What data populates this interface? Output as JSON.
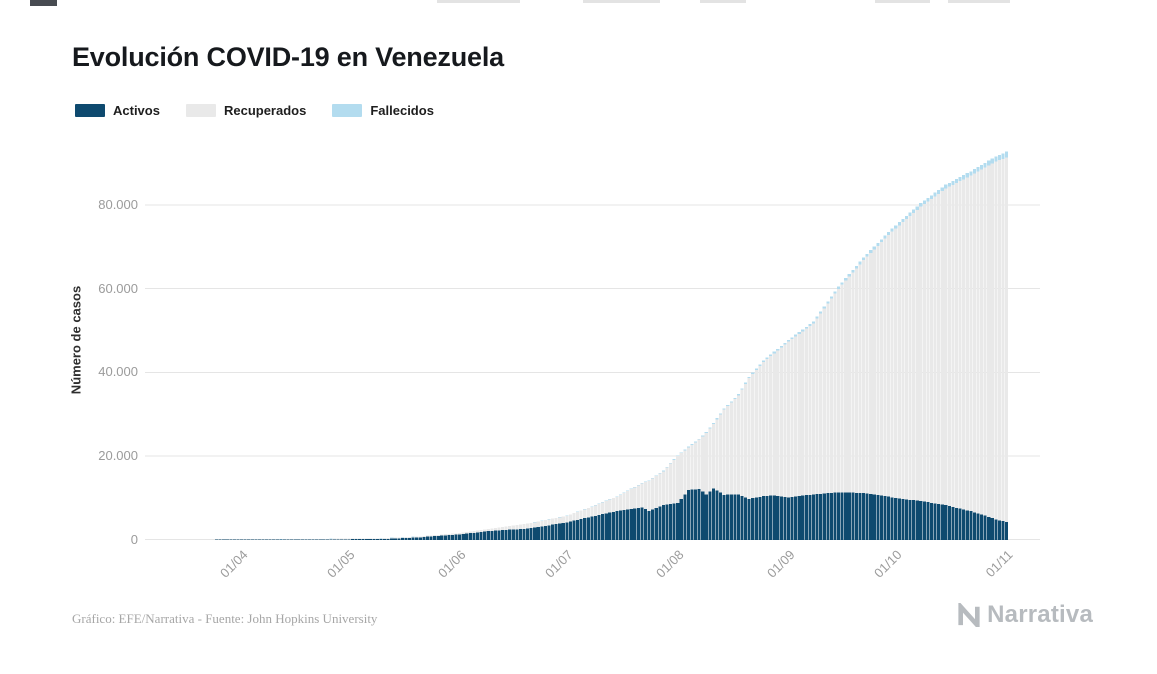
{
  "header": {
    "title": "Evolución COVID-19 en Venezuela"
  },
  "legend": {
    "items": [
      {
        "id": "activos",
        "label": "Activos",
        "color": "#0e4a6f"
      },
      {
        "id": "recuperados",
        "label": "Recuperados",
        "color": "#e9e9e9"
      },
      {
        "id": "fallecidos",
        "label": "Fallecidos",
        "color": "#b3dcef"
      }
    ]
  },
  "theme": {
    "grid_color": "#e5e5e5",
    "axis_text_color": "#9b9b9b",
    "title_color": "#16191d",
    "credit_color": "#a6a6a6",
    "brand_color": "#b7bbbf"
  },
  "footer": {
    "credit": "Gráfico: EFE/Narrativa - Fuente: John Hopkins University",
    "brand_name": "Narrativa"
  },
  "chart_data": {
    "type": "bar",
    "stacked": true,
    "title": "Evolución COVID-19 en Venezuela",
    "xlabel": "",
    "ylabel": "Número de casos",
    "grid": true,
    "legend_position": "top-left",
    "ylim": [
      0,
      95500
    ],
    "total_days": 222,
    "series_order": [
      "activos",
      "recuperados",
      "fallecidos"
    ],
    "colors": {
      "activos": "#0e4a6f",
      "recuperados": "#e9e9e9",
      "fallecidos": "#b3dcef"
    },
    "yticks": [
      {
        "value": 0,
        "label": "0"
      },
      {
        "value": 20000,
        "label": "20.000"
      },
      {
        "value": 40000,
        "label": "40.000"
      },
      {
        "value": 60000,
        "label": "60.000"
      },
      {
        "value": 80000,
        "label": "80.000"
      }
    ],
    "xticks": [
      {
        "day": 7,
        "label": "01/04"
      },
      {
        "day": 37,
        "label": "01/05"
      },
      {
        "day": 68,
        "label": "01/06"
      },
      {
        "day": 98,
        "label": "01/07"
      },
      {
        "day": 129,
        "label": "01/08"
      },
      {
        "day": 160,
        "label": "01/09"
      },
      {
        "day": 190,
        "label": "01/10"
      },
      {
        "day": 221,
        "label": "01/11"
      }
    ],
    "points": [
      {
        "day": 0,
        "date": "25/03",
        "activos": 75,
        "recuperados": 14,
        "fallecidos": 2
      },
      {
        "day": 7,
        "date": "01/04",
        "activos": 110,
        "recuperados": 30,
        "fallecidos": 3
      },
      {
        "day": 16,
        "date": "10/04",
        "activos": 80,
        "recuperados": 82,
        "fallecidos": 9
      },
      {
        "day": 26,
        "date": "20/04",
        "activos": 120,
        "recuperados": 126,
        "fallecidos": 10
      },
      {
        "day": 37,
        "date": "01/05",
        "activos": 180,
        "recuperados": 155,
        "fallecidos": 10
      },
      {
        "day": 46,
        "date": "10/05",
        "activos": 210,
        "recuperados": 202,
        "fallecidos": 10
      },
      {
        "day": 56,
        "date": "20/05",
        "activos": 590,
        "recuperados": 222,
        "fallecidos": 12
      },
      {
        "day": 68,
        "date": "01/06",
        "activos": 1350,
        "recuperados": 307,
        "fallecidos": 20
      },
      {
        "day": 77,
        "date": "10/06",
        "activos": 2200,
        "recuperados": 513,
        "fallecidos": 25
      },
      {
        "day": 87,
        "date": "20/06",
        "activos": 2700,
        "recuperados": 1182,
        "fallecidos": 35
      },
      {
        "day": 98,
        "date": "01/07",
        "activos": 4200,
        "recuperados": 1577,
        "fallecidos": 55
      },
      {
        "day": 105,
        "date": "08/07",
        "activos": 5600,
        "recuperados": 2328,
        "fallecidos": 80
      },
      {
        "day": 112,
        "date": "15/07",
        "activos": 6900,
        "recuperados": 3418,
        "fallecidos": 110
      },
      {
        "day": 119,
        "date": "22/07",
        "activos": 7800,
        "recuperados": 5673,
        "fallecidos": 140
      },
      {
        "day": 121,
        "date": "24/07",
        "activos": 6900,
        "recuperados": 7213,
        "fallecidos": 150
      },
      {
        "day": 125,
        "date": "28/07",
        "activos": 8300,
        "recuperados": 8106,
        "fallecidos": 165
      },
      {
        "day": 129,
        "date": "01/08",
        "activos": 8800,
        "recuperados": 11226,
        "fallecidos": 180
      },
      {
        "day": 132,
        "date": "04/08",
        "activos": 11900,
        "recuperados": 10199,
        "fallecidos": 200
      },
      {
        "day": 135,
        "date": "07/08",
        "activos": 12200,
        "recuperados": 11746,
        "fallecidos": 220
      },
      {
        "day": 137,
        "date": "09/08",
        "activos": 10900,
        "recuperados": 14670,
        "fallecidos": 235
      },
      {
        "day": 139,
        "date": "11/08",
        "activos": 12300,
        "recuperados": 15388,
        "fallecidos": 250
      },
      {
        "day": 142,
        "date": "14/08",
        "activos": 10800,
        "recuperados": 20311,
        "fallecidos": 270
      },
      {
        "day": 146,
        "date": "18/08",
        "activos": 10900,
        "recuperados": 23602,
        "fallecidos": 300
      },
      {
        "day": 149,
        "date": "21/08",
        "activos": 9800,
        "recuperados": 28827,
        "fallecidos": 330
      },
      {
        "day": 153,
        "date": "25/08",
        "activos": 10500,
        "recuperados": 32038,
        "fallecidos": 360
      },
      {
        "day": 156,
        "date": "28/08",
        "activos": 10600,
        "recuperados": 33966,
        "fallecidos": 380
      },
      {
        "day": 160,
        "date": "01/09",
        "activos": 10200,
        "recuperados": 37136,
        "fallecidos": 420
      },
      {
        "day": 167,
        "date": "08/09",
        "activos": 10900,
        "recuperados": 40785,
        "fallecidos": 480
      },
      {
        "day": 174,
        "date": "15/09",
        "activos": 11400,
        "recuperados": 48580,
        "fallecidos": 560
      },
      {
        "day": 181,
        "date": "22/09",
        "activos": 11200,
        "recuperados": 55603,
        "fallecidos": 640
      },
      {
        "day": 188,
        "date": "29/09",
        "activos": 10400,
        "recuperados": 62428,
        "fallecidos": 700
      },
      {
        "day": 190,
        "date": "01/10",
        "activos": 10000,
        "recuperados": 64392,
        "fallecidos": 730
      },
      {
        "day": 197,
        "date": "08/10",
        "activos": 9300,
        "recuperados": 70284,
        "fallecidos": 820
      },
      {
        "day": 204,
        "date": "15/10",
        "activos": 8300,
        "recuperados": 75600,
        "fallecidos": 920
      },
      {
        "day": 211,
        "date": "22/10",
        "activos": 6900,
        "recuperados": 80085,
        "fallecidos": 1050
      },
      {
        "day": 215,
        "date": "26/10",
        "activos": 5800,
        "recuperados": 83097,
        "fallecidos": 1150
      },
      {
        "day": 218,
        "date": "29/10",
        "activos": 4900,
        "recuperados": 85439,
        "fallecidos": 1250
      },
      {
        "day": 221,
        "date": "01/11",
        "activos": 4300,
        "recuperados": 87055,
        "fallecidos": 1350
      }
    ]
  }
}
